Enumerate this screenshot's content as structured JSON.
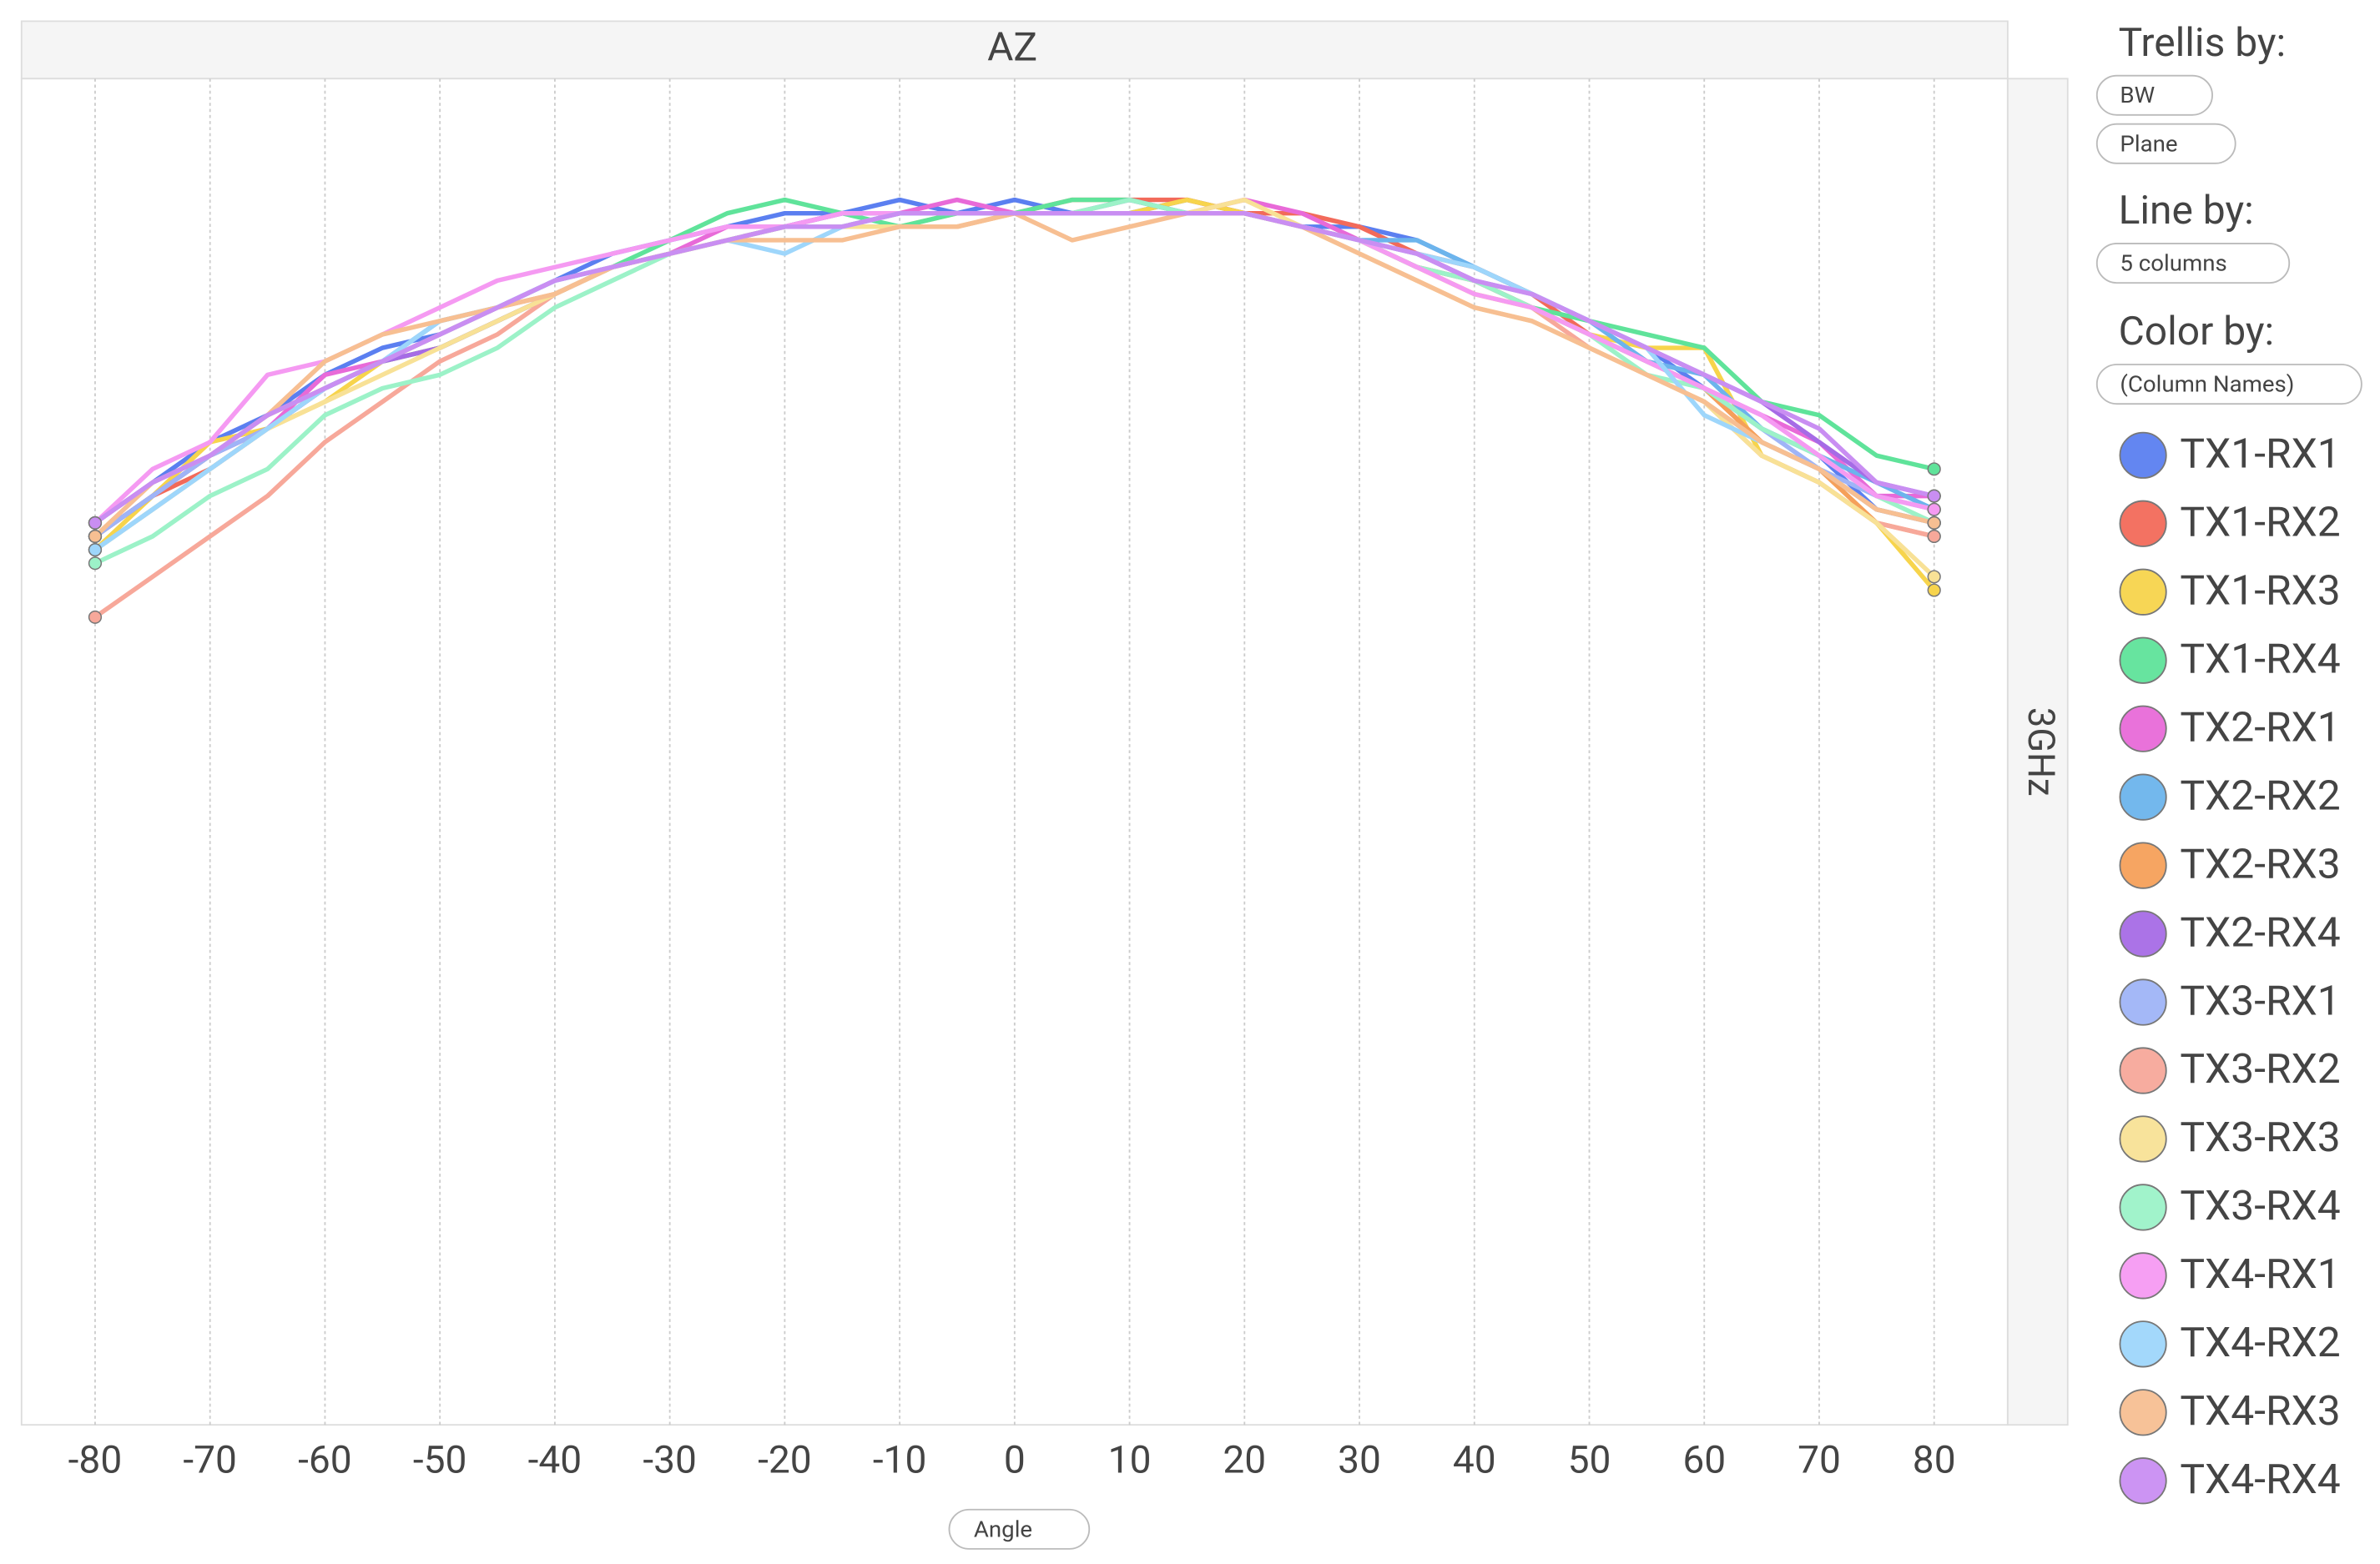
{
  "chart_data": {
    "type": "line",
    "title": "AZ",
    "row_label": "3GHz",
    "x_label": "Angle",
    "x": [
      -80,
      -75,
      -70,
      -65,
      -60,
      -55,
      -50,
      -45,
      -40,
      -35,
      -30,
      -25,
      -20,
      -15,
      -10,
      -5,
      0,
      5,
      10,
      15,
      20,
      25,
      30,
      35,
      40,
      45,
      50,
      55,
      60,
      65,
      70,
      75,
      80
    ],
    "xlim": [
      -86.4,
      86.4
    ],
    "xticks": [
      -80,
      -70,
      -60,
      -50,
      -40,
      -30,
      -20,
      -10,
      0,
      10,
      20,
      30,
      40,
      50,
      60,
      70,
      80
    ],
    "ylim": [
      0,
      100
    ],
    "grid": true,
    "legend": "right",
    "series": [
      {
        "name": "TX1-RX1",
        "color": "#5b7ff0",
        "values": [
          67,
          70,
          73,
          75,
          78,
          80,
          81,
          83,
          85,
          87,
          88,
          89,
          90,
          90,
          91,
          90,
          91,
          90,
          90,
          91,
          90,
          89,
          89,
          88,
          86,
          84,
          82,
          80,
          77,
          74,
          72,
          68,
          67
        ]
      },
      {
        "name": "TX1-RX2",
        "color": "#f26a5a",
        "values": [
          66,
          69,
          71,
          74,
          77,
          79,
          80,
          82,
          84,
          86,
          87,
          88,
          89,
          90,
          90,
          90,
          90,
          91,
          91,
          91,
          90,
          90,
          89,
          87,
          86,
          84,
          81,
          79,
          77,
          73,
          71,
          68,
          67
        ]
      },
      {
        "name": "TX1-RX3",
        "color": "#f7d44c",
        "values": [
          65,
          69,
          73,
          74,
          76,
          79,
          80,
          82,
          84,
          86,
          87,
          88,
          89,
          89,
          89,
          90,
          90,
          90,
          90,
          91,
          90,
          89,
          88,
          86,
          84,
          83,
          81,
          80,
          80,
          72,
          70,
          67,
          62
        ]
      },
      {
        "name": "TX1-RX4",
        "color": "#5fe39a",
        "values": [
          66,
          69,
          72,
          74,
          77,
          79,
          80,
          82,
          84,
          86,
          88,
          90,
          91,
          90,
          89,
          90,
          90,
          91,
          91,
          90,
          90,
          89,
          88,
          86,
          85,
          83,
          82,
          81,
          80,
          76,
          75,
          72,
          71
        ]
      },
      {
        "name": "TX2-RX1",
        "color": "#e86ad8",
        "values": [
          67,
          70,
          72,
          74,
          78,
          79,
          81,
          83,
          85,
          86,
          87,
          89,
          89,
          90,
          90,
          91,
          90,
          90,
          90,
          90,
          91,
          90,
          88,
          87,
          85,
          83,
          81,
          79,
          77,
          75,
          73,
          69,
          69
        ]
      },
      {
        "name": "TX2-RX2",
        "color": "#6cb4ec",
        "values": [
          65,
          68,
          71,
          74,
          77,
          79,
          82,
          83,
          85,
          86,
          87,
          88,
          89,
          89,
          90,
          90,
          90,
          90,
          90,
          90,
          90,
          89,
          88,
          88,
          86,
          84,
          82,
          79,
          78,
          74,
          72,
          70,
          68
        ]
      },
      {
        "name": "TX2-RX3",
        "color": "#f5a05a",
        "values": [
          66,
          69,
          72,
          75,
          77,
          79,
          81,
          83,
          84,
          86,
          87,
          88,
          89,
          89,
          90,
          90,
          90,
          90,
          90,
          90,
          90,
          89,
          88,
          86,
          85,
          83,
          81,
          79,
          77,
          73,
          71,
          67,
          66
        ]
      },
      {
        "name": "TX2-RX4",
        "color": "#a66be6",
        "values": [
          66,
          69,
          72,
          74,
          77,
          79,
          80,
          82,
          84,
          86,
          87,
          88,
          89,
          90,
          90,
          90,
          90,
          90,
          91,
          90,
          90,
          89,
          88,
          87,
          85,
          84,
          82,
          80,
          78,
          76,
          73,
          70,
          69
        ]
      },
      {
        "name": "TX3-RX1",
        "color": "#9fb4f7",
        "values": [
          66,
          69,
          72,
          74,
          77,
          79,
          81,
          83,
          85,
          86,
          87,
          88,
          89,
          90,
          90,
          90,
          90,
          90,
          90,
          90,
          90,
          89,
          88,
          86,
          85,
          83,
          81,
          79,
          77,
          74,
          71,
          69,
          68
        ]
      },
      {
        "name": "TX3-RX2",
        "color": "#f7a89a",
        "values": [
          60,
          63,
          66,
          69,
          73,
          76,
          79,
          81,
          84,
          86,
          87,
          88,
          89,
          89,
          89,
          89,
          90,
          90,
          90,
          90,
          90,
          89,
          88,
          86,
          85,
          83,
          80,
          78,
          76,
          72,
          70,
          67,
          66
        ]
      },
      {
        "name": "TX3-RX3",
        "color": "#f8e196",
        "values": [
          65,
          68,
          71,
          74,
          76,
          78,
          80,
          82,
          84,
          86,
          87,
          88,
          89,
          89,
          89,
          89,
          90,
          90,
          90,
          90,
          91,
          89,
          87,
          85,
          83,
          82,
          80,
          78,
          76,
          72,
          70,
          67,
          63
        ]
      },
      {
        "name": "TX3-RX4",
        "color": "#9cf2c8",
        "values": [
          64,
          66,
          69,
          71,
          75,
          77,
          78,
          80,
          83,
          85,
          87,
          88,
          89,
          89,
          90,
          90,
          90,
          90,
          91,
          90,
          90,
          89,
          88,
          86,
          85,
          83,
          81,
          78,
          77,
          74,
          72,
          69,
          67
        ]
      },
      {
        "name": "TX4-RX1",
        "color": "#f59af2",
        "values": [
          67,
          71,
          73,
          78,
          79,
          81,
          83,
          85,
          86,
          87,
          88,
          89,
          89,
          90,
          90,
          90,
          90,
          90,
          90,
          90,
          90,
          89,
          88,
          86,
          84,
          83,
          81,
          79,
          77,
          75,
          72,
          69,
          68
        ]
      },
      {
        "name": "TX4-RX2",
        "color": "#9ed6fb",
        "values": [
          65,
          68,
          71,
          74,
          77,
          79,
          82,
          83,
          85,
          86,
          87,
          88,
          87,
          89,
          90,
          90,
          90,
          90,
          90,
          90,
          90,
          89,
          88,
          87,
          86,
          84,
          82,
          80,
          75,
          73,
          71,
          68,
          67
        ]
      },
      {
        "name": "TX4-RX3",
        "color": "#f7bf92",
        "values": [
          66,
          70,
          72,
          75,
          79,
          81,
          82,
          83,
          84,
          86,
          87,
          88,
          88,
          88,
          89,
          89,
          90,
          88,
          89,
          90,
          90,
          89,
          87,
          85,
          83,
          82,
          80,
          78,
          76,
          73,
          71,
          68,
          67
        ]
      },
      {
        "name": "TX4-RX4",
        "color": "#c98ef2",
        "values": [
          67,
          70,
          72,
          75,
          77,
          79,
          81,
          83,
          85,
          86,
          87,
          88,
          89,
          89,
          90,
          90,
          90,
          90,
          90,
          90,
          90,
          89,
          88,
          87,
          85,
          84,
          82,
          80,
          78,
          76,
          74,
          70,
          69
        ]
      }
    ]
  },
  "controls": {
    "trellis_label": "Trellis by:",
    "trellis_items": [
      "BW",
      "Plane"
    ],
    "line_label": "Line by:",
    "line_item": "5 columns",
    "color_label": "Color by:",
    "color_item": "(Column Names)"
  }
}
